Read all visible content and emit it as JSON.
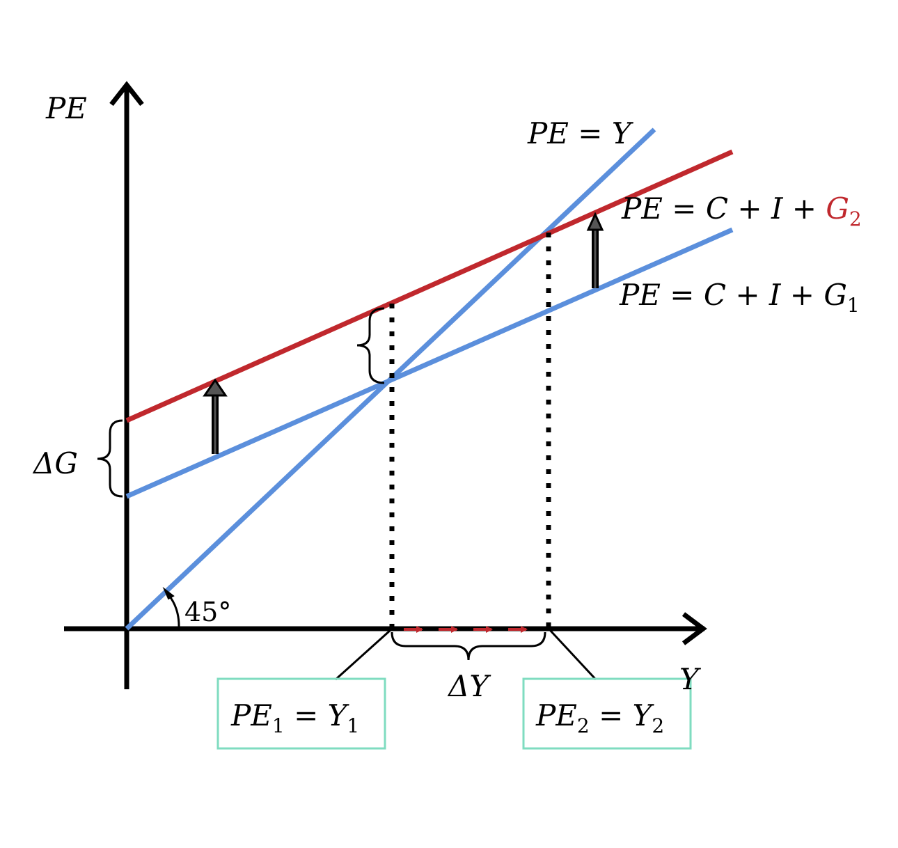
{
  "colors": {
    "blue": "#5b8fdc",
    "red": "#c0282d",
    "black": "#000000",
    "box_border": "#7fdcc0",
    "arrow_fill": "#555555"
  },
  "axes": {
    "y_label": "PE",
    "x_label": "Y",
    "angle_label": "45°"
  },
  "lines": {
    "pe_eq_y": {
      "lhs": "PE",
      "eq": " = ",
      "rhs": "Y"
    },
    "pe_g2": {
      "lhs": "PE",
      "eq": " = ",
      "mid": "C + I + ",
      "g": "G",
      "sub": "2"
    },
    "pe_g1": {
      "lhs": "PE",
      "eq": " = ",
      "mid": "C + I + ",
      "g": "G",
      "sub": "1"
    }
  },
  "brackets": {
    "delta_g": {
      "delta": "Δ",
      "var": "G"
    },
    "delta_y": {
      "delta": "Δ",
      "var": "Y"
    }
  },
  "boxes": {
    "eq1": {
      "pe": "PE",
      "pe_sub": "1",
      "eq": " = ",
      "y": "Y",
      "y_sub": "1"
    },
    "eq2": {
      "pe": "PE",
      "pe_sub": "2",
      "eq": " = ",
      "y": "Y",
      "y_sub": "2"
    }
  }
}
